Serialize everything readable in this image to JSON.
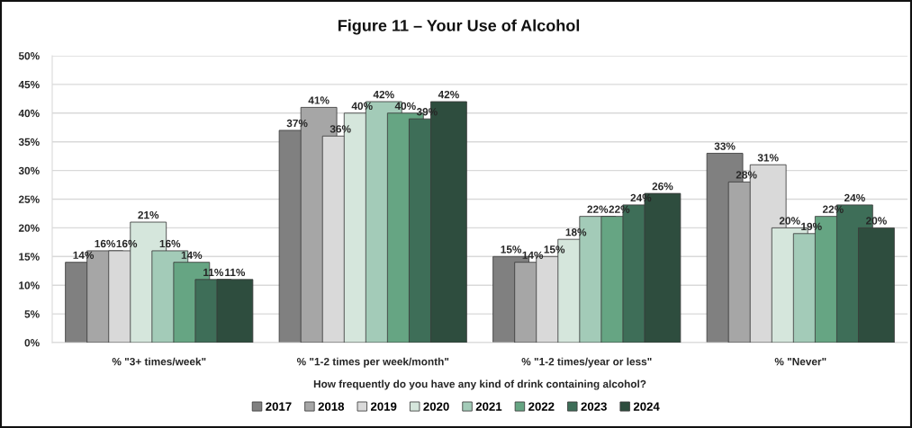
{
  "chart_data": {
    "type": "bar",
    "title": "Figure 11 – Your Use of Alcohol",
    "xlabel": "How frequently do you have any kind of drink containing alcohol?",
    "categories": [
      "% \"3+ times/week\"",
      "% \"1-2 times per week/month\"",
      "% \"1-2 times/year or less\"",
      "% \"Never\""
    ],
    "series": [
      {
        "name": "2017",
        "color": "#808080",
        "values": [
          14,
          37,
          15,
          33
        ],
        "value_labels": [
          "14%",
          "37%",
          "15%",
          "33%"
        ]
      },
      {
        "name": "2018",
        "color": "#a6a6a6",
        "values": [
          16,
          41,
          14,
          28
        ],
        "value_labels": [
          "16%",
          "41%",
          "14%",
          "28%"
        ]
      },
      {
        "name": "2019",
        "color": "#d9d9d9",
        "values": [
          16,
          36,
          15,
          31
        ],
        "value_labels": [
          "16%",
          "36%",
          "15%",
          "31%"
        ]
      },
      {
        "name": "2020",
        "color": "#d5e6dc",
        "values": [
          21,
          40,
          18,
          20
        ],
        "value_labels": [
          "21%",
          "40%",
          "18%",
          "20%"
        ]
      },
      {
        "name": "2021",
        "color": "#a3cbb8",
        "values": [
          16,
          42,
          22,
          19
        ],
        "value_labels": [
          "16%",
          "42%",
          "22%",
          "19%"
        ]
      },
      {
        "name": "2022",
        "color": "#66a583",
        "values": [
          14,
          40,
          22,
          22
        ],
        "value_labels": [
          "14%",
          "40%",
          "22%",
          "22%"
        ]
      },
      {
        "name": "2023",
        "color": "#3e6e58",
        "values": [
          11,
          39,
          24,
          24
        ],
        "value_labels": [
          "11%",
          "39%",
          "24%",
          "24%"
        ]
      },
      {
        "name": "2024",
        "color": "#2e4d3e",
        "values": [
          11,
          42,
          26,
          20
        ],
        "value_labels": [
          "11%",
          "42%",
          "26%",
          "20%"
        ]
      }
    ],
    "ylim": [
      0,
      50
    ],
    "yticks": [
      {
        "value": 0,
        "label": "0%"
      },
      {
        "value": 5,
        "label": "5%"
      },
      {
        "value": 10,
        "label": "10%"
      },
      {
        "value": 15,
        "label": "15%"
      },
      {
        "value": 20,
        "label": "20%"
      },
      {
        "value": 25,
        "label": "25%"
      },
      {
        "value": 30,
        "label": "30%"
      },
      {
        "value": 35,
        "label": "35%"
      },
      {
        "value": 40,
        "label": "40%"
      },
      {
        "value": 45,
        "label": "45%"
      },
      {
        "value": 50,
        "label": "50%"
      }
    ],
    "grid": "y",
    "legend": "bottom"
  }
}
